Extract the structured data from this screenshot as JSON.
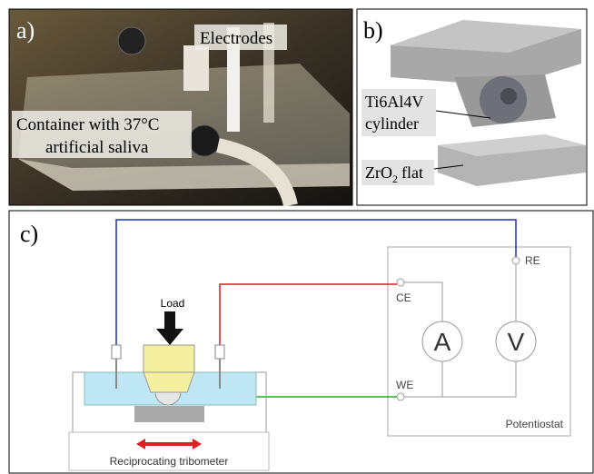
{
  "panel_a": {
    "label": "a)",
    "electrodes": "Electrodes",
    "container": [
      "Container with 37°C",
      "artificial saliva"
    ]
  },
  "panel_b": {
    "label": "b)",
    "cylinder": [
      "Ti6Al4V",
      "cylinder"
    ],
    "flat": {
      "base": "ZrO",
      "subscript": "2",
      "rest": "flat"
    }
  },
  "panel_c": {
    "label": "c)",
    "load": "Load",
    "ce": "CE",
    "re": "RE",
    "we": "WE",
    "ammeter": "A",
    "voltmeter": "V",
    "potentiostat": "Potentiostat",
    "tribometer": "Reciprocating tribometer"
  }
}
